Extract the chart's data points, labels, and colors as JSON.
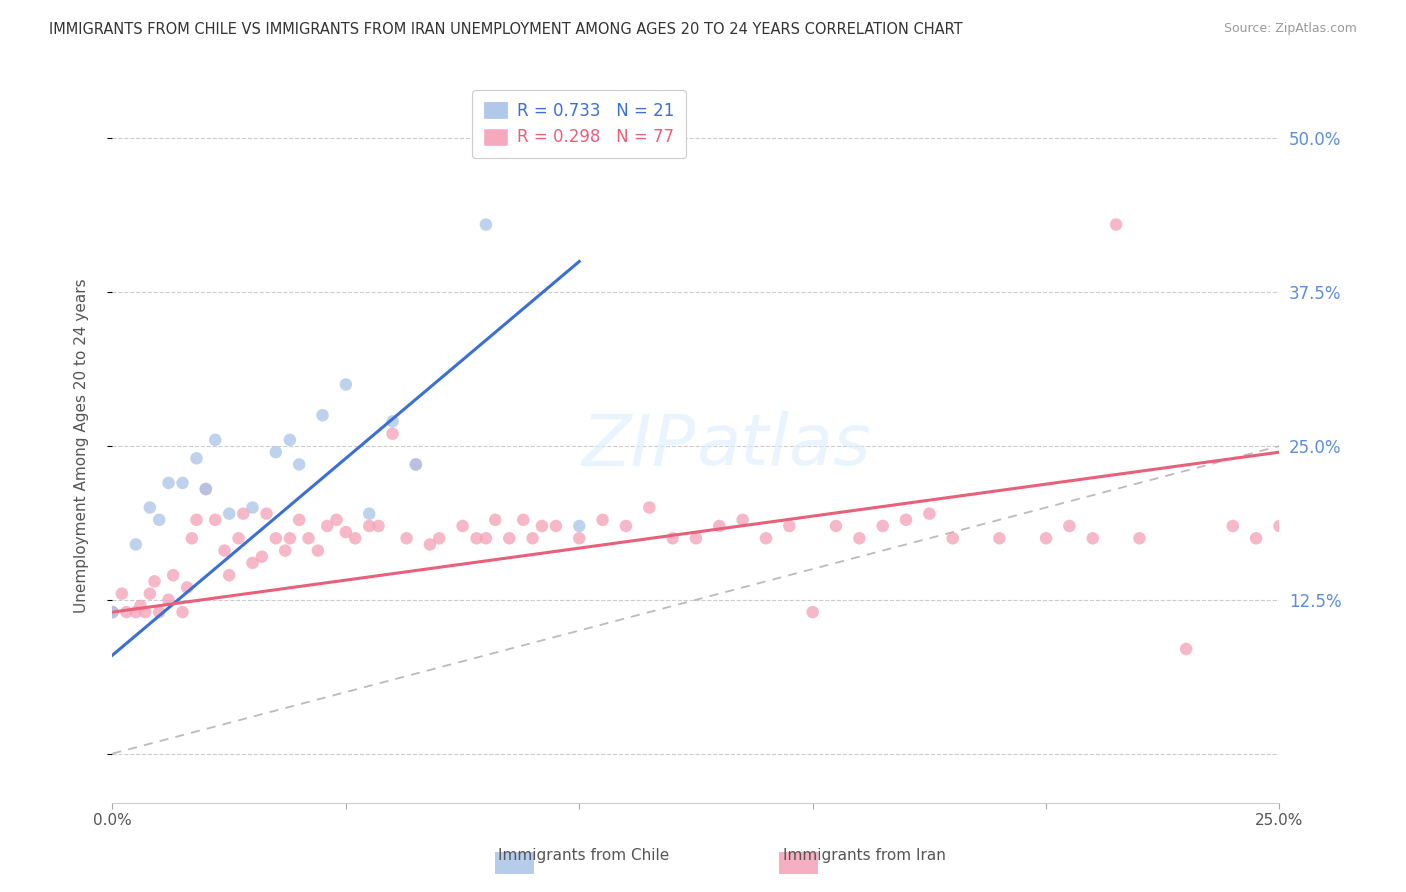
{
  "title": "IMMIGRANTS FROM CHILE VS IMMIGRANTS FROM IRAN UNEMPLOYMENT AMONG AGES 20 TO 24 YEARS CORRELATION CHART",
  "source": "Source: ZipAtlas.com",
  "ylabel": "Unemployment Among Ages 20 to 24 years",
  "xlim": [
    0.0,
    0.25
  ],
  "ylim": [
    -0.04,
    0.54
  ],
  "xticks": [
    0.0,
    0.05,
    0.1,
    0.15,
    0.2,
    0.25
  ],
  "yticks": [
    0.0,
    0.125,
    0.25,
    0.375,
    0.5
  ],
  "xtick_labels": [
    "0.0%",
    "",
    "",
    "",
    "",
    "25.0%"
  ],
  "ytick_labels_right": [
    "",
    "12.5%",
    "25.0%",
    "37.5%",
    "50.0%"
  ],
  "background_color": "#ffffff",
  "grid_color": "#cccccc",
  "title_color": "#333333",
  "axis_label_color": "#555555",
  "tick_color_right": "#5b8dd9",
  "chile_color": "#a8c4e8",
  "iran_color": "#f4a0b8",
  "chile_line_color": "#3b6fd4",
  "iran_line_color": "#e8607a",
  "ref_line_color": "#bbbbbb",
  "marker_size": 9,
  "chile_line_x0": 0.0,
  "chile_line_y0": 0.08,
  "chile_line_x1": 0.1,
  "chile_line_y1": 0.4,
  "iran_line_x0": 0.0,
  "iran_line_y0": 0.115,
  "iran_line_x1": 0.25,
  "iran_line_y1": 0.245,
  "chile_points_x": [
    0.0,
    0.005,
    0.008,
    0.01,
    0.012,
    0.015,
    0.018,
    0.02,
    0.022,
    0.025,
    0.03,
    0.035,
    0.038,
    0.04,
    0.045,
    0.05,
    0.055,
    0.06,
    0.065,
    0.08,
    0.1
  ],
  "chile_points_y": [
    0.115,
    0.17,
    0.2,
    0.19,
    0.22,
    0.22,
    0.24,
    0.215,
    0.255,
    0.195,
    0.2,
    0.245,
    0.255,
    0.235,
    0.275,
    0.3,
    0.195,
    0.27,
    0.235,
    0.43,
    0.185
  ],
  "iran_points_x": [
    0.0,
    0.002,
    0.003,
    0.005,
    0.006,
    0.007,
    0.008,
    0.009,
    0.01,
    0.012,
    0.013,
    0.015,
    0.016,
    0.017,
    0.018,
    0.02,
    0.022,
    0.024,
    0.025,
    0.027,
    0.028,
    0.03,
    0.032,
    0.033,
    0.035,
    0.037,
    0.038,
    0.04,
    0.042,
    0.044,
    0.046,
    0.048,
    0.05,
    0.052,
    0.055,
    0.057,
    0.06,
    0.063,
    0.065,
    0.068,
    0.07,
    0.075,
    0.078,
    0.08,
    0.082,
    0.085,
    0.088,
    0.09,
    0.092,
    0.095,
    0.1,
    0.105,
    0.11,
    0.115,
    0.12,
    0.125,
    0.13,
    0.135,
    0.14,
    0.145,
    0.15,
    0.155,
    0.16,
    0.165,
    0.17,
    0.175,
    0.18,
    0.19,
    0.2,
    0.205,
    0.21,
    0.215,
    0.22,
    0.23,
    0.24,
    0.245,
    0.25
  ],
  "iran_points_y": [
    0.115,
    0.13,
    0.115,
    0.115,
    0.12,
    0.115,
    0.13,
    0.14,
    0.115,
    0.125,
    0.145,
    0.115,
    0.135,
    0.175,
    0.19,
    0.215,
    0.19,
    0.165,
    0.145,
    0.175,
    0.195,
    0.155,
    0.16,
    0.195,
    0.175,
    0.165,
    0.175,
    0.19,
    0.175,
    0.165,
    0.185,
    0.19,
    0.18,
    0.175,
    0.185,
    0.185,
    0.26,
    0.175,
    0.235,
    0.17,
    0.175,
    0.185,
    0.175,
    0.175,
    0.19,
    0.175,
    0.19,
    0.175,
    0.185,
    0.185,
    0.175,
    0.19,
    0.185,
    0.2,
    0.175,
    0.175,
    0.185,
    0.19,
    0.175,
    0.185,
    0.115,
    0.185,
    0.175,
    0.185,
    0.19,
    0.195,
    0.175,
    0.175,
    0.175,
    0.185,
    0.175,
    0.43,
    0.175,
    0.085,
    0.185,
    0.175,
    0.185
  ]
}
